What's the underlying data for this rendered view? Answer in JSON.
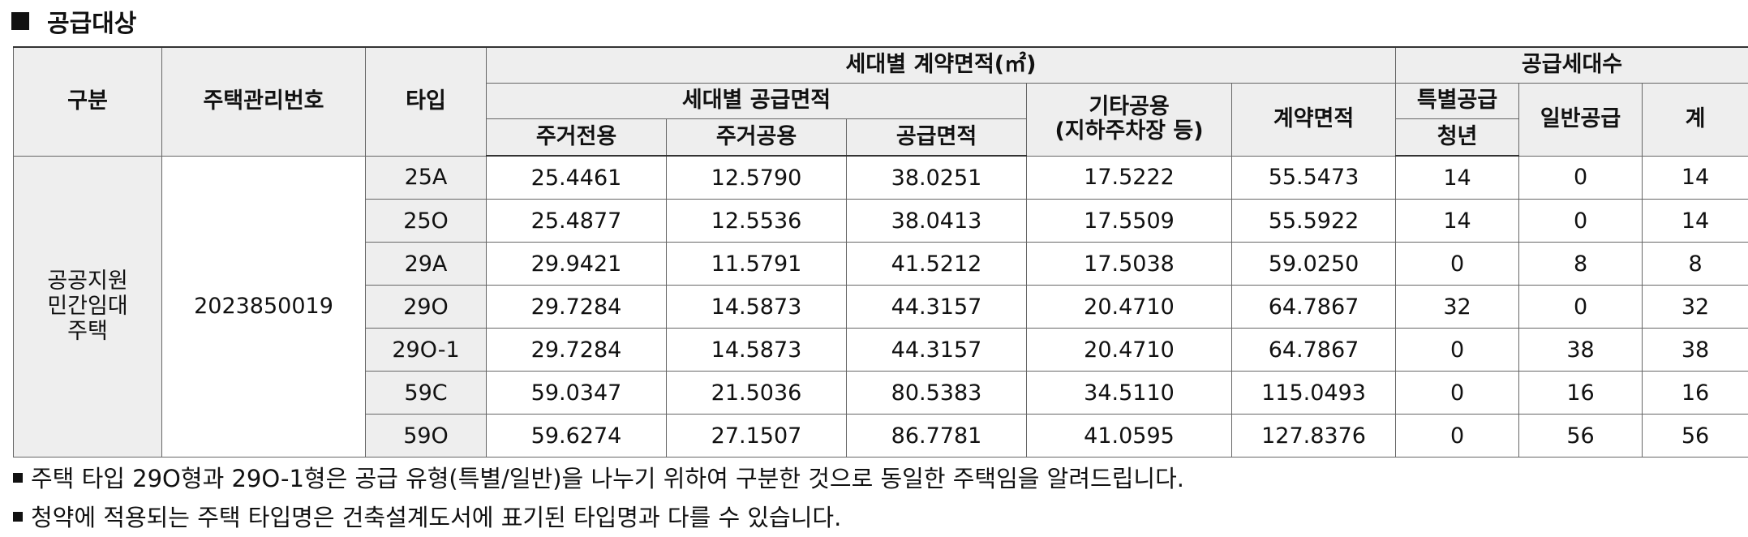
{
  "section_title": "공급대상",
  "headers": {
    "division": "구분",
    "housing_number": "주택관리번호",
    "type": "타입",
    "contract_area_group": "세대별 계약면적(㎡)",
    "supply_area_group": "세대별 공급면적",
    "exclusive_residential": "주거전용",
    "common_residential": "주거공용",
    "supply_area": "공급면적",
    "other_common_line1": "기타공용",
    "other_common_line2": "(지하주차장 등)",
    "contract_area": "계약면적",
    "households_group": "공급세대수",
    "special_supply": "특별공급",
    "youth": "청년",
    "general_supply": "일반공급",
    "total": "계"
  },
  "category": {
    "line1": "공공지원",
    "line2": "민간임대",
    "line3": "주택"
  },
  "housing_number": "2023850019",
  "rows": [
    {
      "type": "25A",
      "exclusive": "25.4461",
      "common": "12.5790",
      "supply": "38.0251",
      "other": "17.5222",
      "contract": "55.5473",
      "youth": "14",
      "general": "0",
      "total": "14"
    },
    {
      "type": "25O",
      "exclusive": "25.4877",
      "common": "12.5536",
      "supply": "38.0413",
      "other": "17.5509",
      "contract": "55.5922",
      "youth": "14",
      "general": "0",
      "total": "14"
    },
    {
      "type": "29A",
      "exclusive": "29.9421",
      "common": "11.5791",
      "supply": "41.5212",
      "other": "17.5038",
      "contract": "59.0250",
      "youth": "0",
      "general": "8",
      "total": "8"
    },
    {
      "type": "29O",
      "exclusive": "29.7284",
      "common": "14.5873",
      "supply": "44.3157",
      "other": "20.4710",
      "contract": "64.7867",
      "youth": "32",
      "general": "0",
      "total": "32"
    },
    {
      "type": "29O-1",
      "exclusive": "29.7284",
      "common": "14.5873",
      "supply": "44.3157",
      "other": "20.4710",
      "contract": "64.7867",
      "youth": "0",
      "general": "38",
      "total": "38"
    },
    {
      "type": "59C",
      "exclusive": "59.0347",
      "common": "21.5036",
      "supply": "80.5383",
      "other": "34.5110",
      "contract": "115.0493",
      "youth": "0",
      "general": "16",
      "total": "16"
    },
    {
      "type": "59O",
      "exclusive": "59.6274",
      "common": "27.1507",
      "supply": "86.7781",
      "other": "41.0595",
      "contract": "127.8376",
      "youth": "0",
      "general": "56",
      "total": "56"
    }
  ],
  "notes": [
    "주택 타입 29O형과 29O-1형은 공급 유형(특별/일반)을 나누기 위하여 구분한 것으로 동일한 주택임을 알려드립니다.",
    "청약에 적용되는 주택 타입명은 건축설계도서에 표기된 타입명과 다를 수 있습니다."
  ]
}
